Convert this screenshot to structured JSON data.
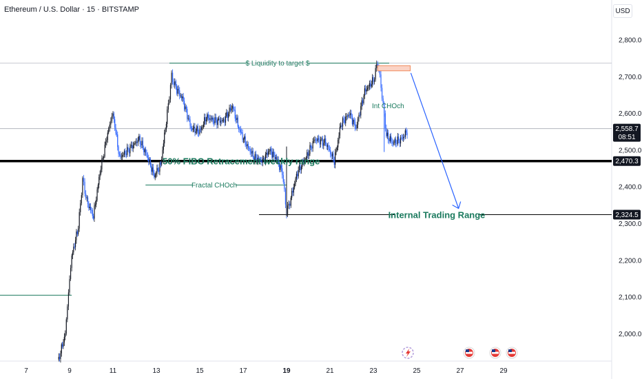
{
  "header": {
    "title": "Ethereum / U.S. Dollar · 15 · BITSTAMP",
    "currency": "USD"
  },
  "colors": {
    "up": "#131722",
    "down": "#2962ff",
    "annotation_green": "#1b7a5e",
    "arrow": "#2962ff",
    "zone": "#f5a38a"
  },
  "chart_data": {
    "type": "candlestick",
    "symbol": "Ethereum / U.S. Dollar",
    "interval": "15",
    "exchange": "BITSTAMP",
    "y_ticks": [
      "2,800.0",
      "2,700.0",
      "2,600.0",
      "2,500.0",
      "2,400.0",
      "2,300.0",
      "2,200.0",
      "2,100.0",
      "2,000.0"
    ],
    "y_tick_values": [
      2800,
      2700,
      2600,
      2500,
      2400,
      2300,
      2200,
      2100,
      2000
    ],
    "x_ticks": [
      "7",
      "9",
      "11",
      "13",
      "15",
      "17",
      "19",
      "21",
      "23",
      "25",
      "27",
      "29"
    ],
    "x_tick_values": [
      7,
      9,
      11,
      13,
      15,
      17,
      19,
      21,
      23,
      25,
      27,
      29
    ],
    "bold_x_ticks": [
      "19"
    ],
    "ylim": [
      1925,
      2865
    ],
    "xlim": [
      6.0,
      32.0
    ],
    "price_path": [
      [
        8.5,
        1930
      ],
      [
        8.8,
        2000
      ],
      [
        9.0,
        2150
      ],
      [
        9.1,
        2210
      ],
      [
        9.4,
        2290
      ],
      [
        9.6,
        2420
      ],
      [
        9.8,
        2360
      ],
      [
        10.1,
        2320
      ],
      [
        10.4,
        2440
      ],
      [
        10.8,
        2560
      ],
      [
        11.0,
        2600
      ],
      [
        11.3,
        2480
      ],
      [
        11.7,
        2500
      ],
      [
        12.2,
        2530
      ],
      [
        12.6,
        2480
      ],
      [
        12.9,
        2430
      ],
      [
        13.2,
        2460
      ],
      [
        13.5,
        2600
      ],
      [
        13.7,
        2700
      ],
      [
        13.9,
        2670
      ],
      [
        14.2,
        2640
      ],
      [
        14.6,
        2560
      ],
      [
        15.0,
        2550
      ],
      [
        15.3,
        2590
      ],
      [
        15.7,
        2580
      ],
      [
        16.1,
        2580
      ],
      [
        16.5,
        2620
      ],
      [
        16.8,
        2560
      ],
      [
        17.1,
        2520
      ],
      [
        17.5,
        2480
      ],
      [
        17.9,
        2470
      ],
      [
        18.2,
        2500
      ],
      [
        18.5,
        2480
      ],
      [
        18.8,
        2440
      ],
      [
        19.0,
        2330
      ],
      [
        19.2,
        2370
      ],
      [
        19.5,
        2440
      ],
      [
        19.9,
        2480
      ],
      [
        20.3,
        2530
      ],
      [
        20.8,
        2520
      ],
      [
        21.2,
        2470
      ],
      [
        21.5,
        2570
      ],
      [
        21.9,
        2600
      ],
      [
        22.2,
        2560
      ],
      [
        22.6,
        2660
      ],
      [
        23.0,
        2690
      ],
      [
        23.2,
        2740
      ],
      [
        23.4,
        2650
      ],
      [
        23.6,
        2540
      ],
      [
        23.9,
        2520
      ],
      [
        24.3,
        2530
      ],
      [
        24.6,
        2555
      ]
    ],
    "annotations": [
      {
        "text": "$ Liquidity to target $",
        "kind": "horizontal_line",
        "price": 2737,
        "from": 13.6,
        "to": 32.0
      },
      {
        "text": "Int CHOch",
        "kind": "label",
        "price": 2620,
        "x": 23.0
      },
      {
        "text": "50% FIBO Retracement weekly range",
        "kind": "horizontal_line",
        "price": 2470.3,
        "from": 6.0,
        "to": 32.0
      },
      {
        "text": "Fractal CHOch",
        "kind": "horizontal_line",
        "price": 2405,
        "from": 12.5,
        "to": 19.0
      },
      {
        "text": "Internal Trading Range",
        "kind": "horizontal_line",
        "price": 2324.5,
        "from": 18.0,
        "to": 32.0
      },
      {
        "text": "",
        "kind": "horizontal_line",
        "price": 2105,
        "from": 6.0,
        "to": 9.1
      },
      {
        "text": "",
        "kind": "zone",
        "price_top": 2730,
        "price_bottom": 2716,
        "from": 23.2,
        "to": 24.7
      },
      {
        "text": "",
        "kind": "arrow",
        "from_point": [
          24.6,
          2710
        ],
        "to_point": [
          26.8,
          2330
        ]
      }
    ],
    "price_tags": [
      {
        "label": "2,558.7",
        "sub": "08:51",
        "value": 2558.7,
        "style": "current"
      },
      {
        "label": "2,470.3",
        "value": 2470.3,
        "style": "level"
      },
      {
        "label": "2,324.5",
        "value": 2324.5,
        "style": "level"
      }
    ]
  }
}
